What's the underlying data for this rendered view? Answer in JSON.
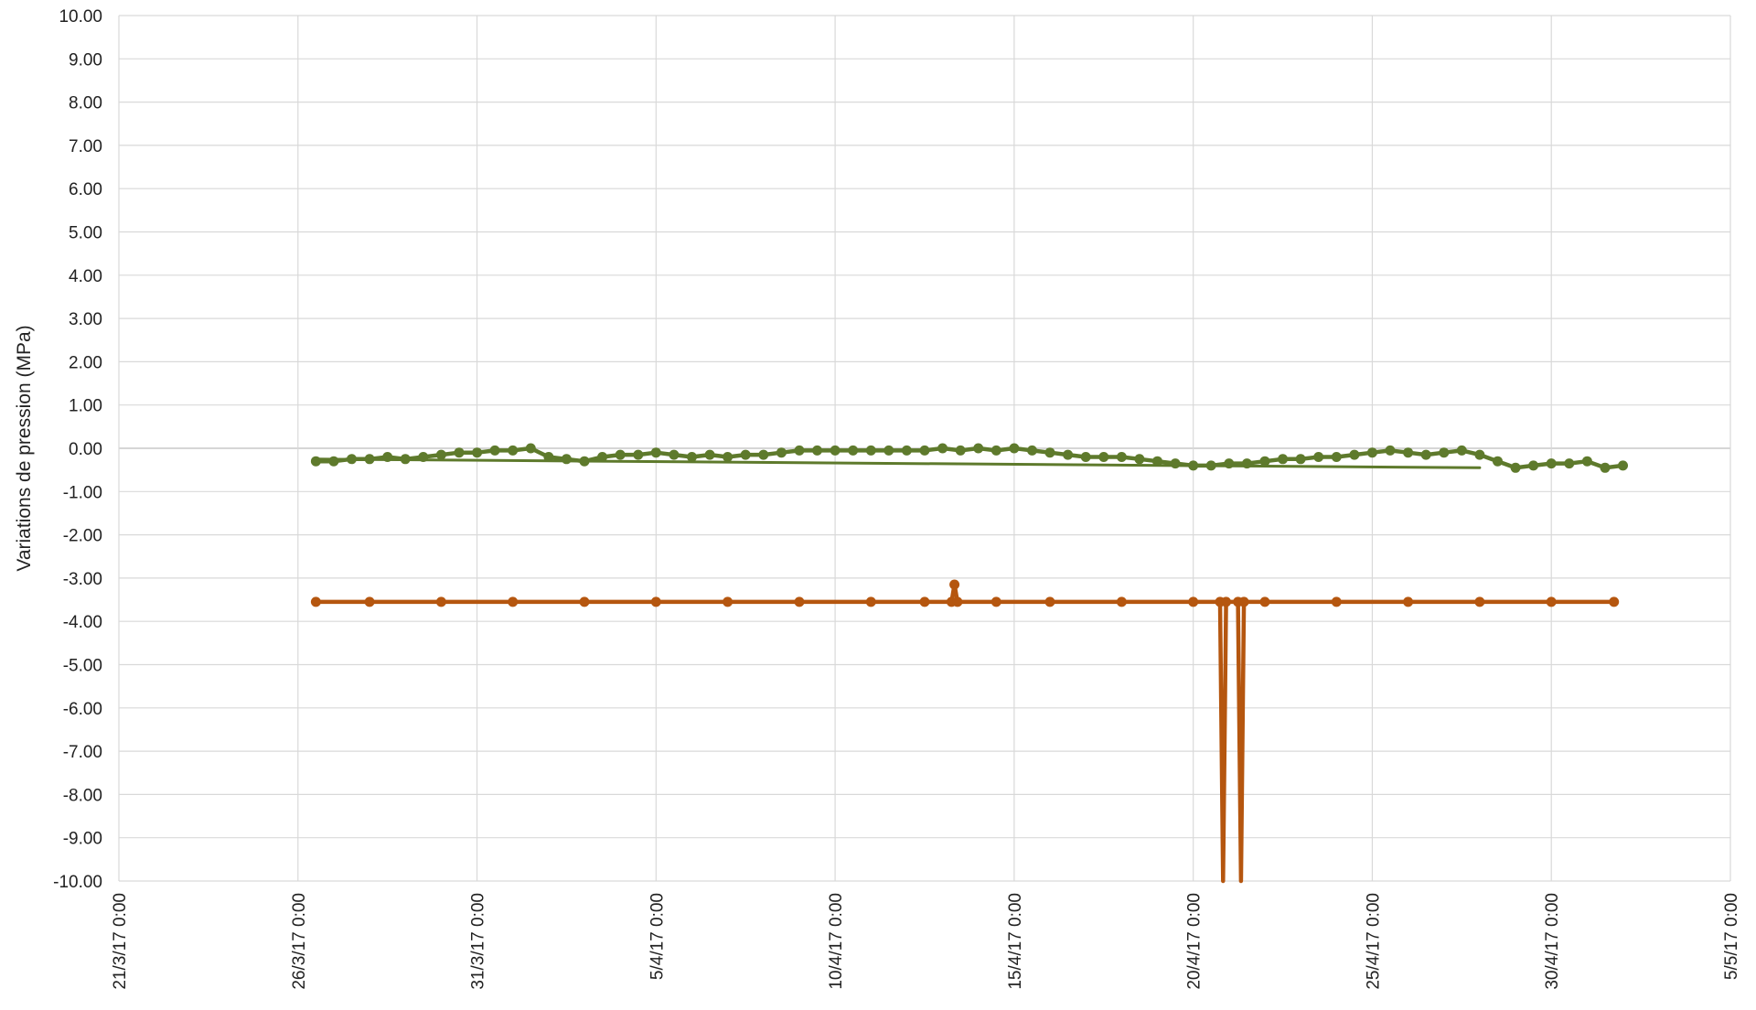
{
  "chart_data": {
    "type": "line",
    "title": "",
    "xlabel": "",
    "ylabel": "Variations de pression (MPa)",
    "ylim": [
      -10,
      10
    ],
    "ytick_step": 1,
    "xlim": [
      "2017-03-21",
      "2017-05-05"
    ],
    "x_tick_labels": [
      "21/3/17 0:00",
      "26/3/17 0:00",
      "31/3/17 0:00",
      "5/4/17 0:00",
      "10/4/17 0:00",
      "15/4/17 0:00",
      "20/4/17 0:00",
      "25/4/17 0:00",
      "30/4/17 0:00",
      "5/5/17 0:00"
    ],
    "grid": true,
    "legend": "none",
    "series": [
      {
        "color": "#5e7a2c",
        "style": "line-markers",
        "x": [
          "2017-03-26 12:00",
          "2017-03-27 00:00",
          "2017-03-27 12:00",
          "2017-03-28 00:00",
          "2017-03-28 12:00",
          "2017-03-29 00:00",
          "2017-03-29 12:00",
          "2017-03-30 00:00",
          "2017-03-30 12:00",
          "2017-03-31 00:00",
          "2017-03-31 12:00",
          "2017-04-01 00:00",
          "2017-04-01 12:00",
          "2017-04-02 00:00",
          "2017-04-02 12:00",
          "2017-04-03 00:00",
          "2017-04-03 12:00",
          "2017-04-04 00:00",
          "2017-04-04 12:00",
          "2017-04-05 00:00",
          "2017-04-05 12:00",
          "2017-04-06 00:00",
          "2017-04-06 12:00",
          "2017-04-07 00:00",
          "2017-04-07 12:00",
          "2017-04-08 00:00",
          "2017-04-08 12:00",
          "2017-04-09 00:00",
          "2017-04-09 12:00",
          "2017-04-10 00:00",
          "2017-04-10 12:00",
          "2017-04-11 00:00",
          "2017-04-11 12:00",
          "2017-04-12 00:00",
          "2017-04-12 12:00",
          "2017-04-13 00:00",
          "2017-04-13 12:00",
          "2017-04-14 00:00",
          "2017-04-14 12:00",
          "2017-04-15 00:00",
          "2017-04-15 12:00",
          "2017-04-16 00:00",
          "2017-04-16 12:00",
          "2017-04-17 00:00",
          "2017-04-17 12:00",
          "2017-04-18 00:00",
          "2017-04-18 12:00",
          "2017-04-19 00:00",
          "2017-04-19 12:00",
          "2017-04-20 00:00",
          "2017-04-20 12:00",
          "2017-04-21 00:00",
          "2017-04-21 12:00",
          "2017-04-22 00:00",
          "2017-04-22 12:00",
          "2017-04-23 00:00",
          "2017-04-23 12:00",
          "2017-04-24 00:00",
          "2017-04-24 12:00",
          "2017-04-25 00:00",
          "2017-04-25 12:00",
          "2017-04-26 00:00",
          "2017-04-26 12:00",
          "2017-04-27 00:00",
          "2017-04-27 12:00",
          "2017-04-28 00:00",
          "2017-04-28 12:00",
          "2017-04-29 00:00",
          "2017-04-29 12:00",
          "2017-04-30 00:00",
          "2017-04-30 12:00",
          "2017-05-01 00:00",
          "2017-05-01 12:00",
          "2017-05-02 00:00"
        ],
        "y": [
          -0.3,
          -0.3,
          -0.25,
          -0.25,
          -0.2,
          -0.25,
          -0.2,
          -0.15,
          -0.1,
          -0.1,
          -0.05,
          -0.05,
          0,
          -0.2,
          -0.25,
          -0.3,
          -0.2,
          -0.15,
          -0.15,
          -0.1,
          -0.15,
          -0.2,
          -0.15,
          -0.2,
          -0.15,
          -0.15,
          -0.1,
          -0.05,
          -0.05,
          -0.05,
          -0.05,
          -0.05,
          -0.05,
          -0.05,
          -0.05,
          0,
          -0.05,
          0,
          -0.05,
          0,
          -0.05,
          -0.1,
          -0.15,
          -0.2,
          -0.2,
          -0.2,
          -0.25,
          -0.3,
          -0.35,
          -0.4,
          -0.4,
          -0.35,
          -0.35,
          -0.3,
          -0.25,
          -0.25,
          -0.2,
          -0.2,
          -0.15,
          -0.1,
          -0.05,
          -0.1,
          -0.15,
          -0.1,
          -0.05,
          -0.15,
          -0.3,
          -0.45,
          -0.4,
          -0.35,
          -0.35,
          -0.3,
          -0.45,
          -0.4
        ]
      },
      {
        "color": "#5e7a2c",
        "style": "line",
        "x": [
          "2017-03-26 12:00",
          "2017-04-28 00:00"
        ],
        "y": [
          -0.25,
          -0.45
        ]
      },
      {
        "color": "#b5560f",
        "style": "line-markers",
        "x": [
          "2017-03-26 12:00",
          "2017-03-28 00:00",
          "2017-03-30 00:00",
          "2017-04-01 00:00",
          "2017-04-03 00:00",
          "2017-04-05 00:00",
          "2017-04-07 00:00",
          "2017-04-09 00:00",
          "2017-04-11 00:00",
          "2017-04-12 12:00",
          "2017-04-13 06:00",
          "2017-04-13 08:00",
          "2017-04-13 10:00",
          "2017-04-14 12:00",
          "2017-04-16 00:00",
          "2017-04-18 00:00",
          "2017-04-20 00:00",
          "2017-04-20 18:00",
          "2017-04-20 20:00",
          "2017-04-20 22:00",
          "2017-04-21 06:00",
          "2017-04-21 08:00",
          "2017-04-21 10:00",
          "2017-04-22 00:00",
          "2017-04-24 00:00",
          "2017-04-26 00:00",
          "2017-04-28 00:00",
          "2017-04-30 00:00",
          "2017-05-01 18:00"
        ],
        "y": [
          -3.55,
          -3.55,
          -3.55,
          -3.55,
          -3.55,
          -3.55,
          -3.55,
          -3.55,
          -3.55,
          -3.55,
          -3.55,
          -3.15,
          -3.55,
          -3.55,
          -3.55,
          -3.55,
          -3.55,
          -3.55,
          -10,
          -3.55,
          -3.55,
          -10,
          -3.55,
          -3.55,
          -3.55,
          -3.55,
          -3.55,
          -3.55,
          -3.55
        ]
      }
    ]
  }
}
